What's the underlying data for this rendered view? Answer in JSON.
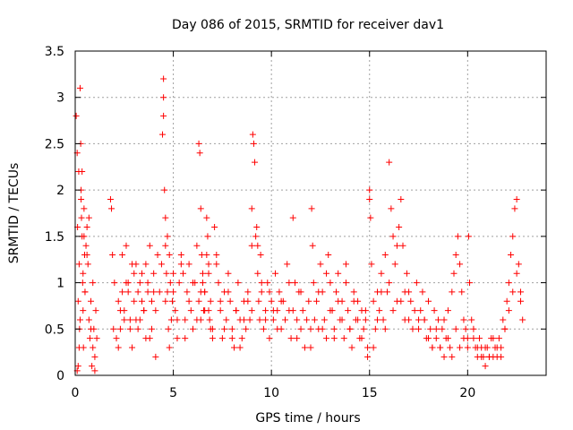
{
  "chart_data": {
    "type": "scatter",
    "title": "Day 086 of 2015, SRMTID for receiver dav1",
    "xlabel": "GPS time / hours",
    "ylabel": "SRMTID / TECUs",
    "xlim": [
      0,
      24
    ],
    "ylim": [
      0,
      3.5
    ],
    "xticks": [
      0,
      5,
      10,
      15,
      20
    ],
    "yticks": [
      0,
      0.5,
      1,
      1.5,
      2,
      2.5,
      3,
      3.5
    ],
    "xtick_labels": [
      "0",
      "5",
      "10",
      "15",
      "20"
    ],
    "ytick_labels": [
      "0",
      "0.5",
      "1",
      "1.5",
      "2",
      "2.5",
      "3",
      "3.5"
    ],
    "grid": true,
    "marker": "+",
    "color": "#ff0000",
    "series": [
      {
        "name": "SRMTID",
        "x": [
          0.05,
          0.1,
          0.12,
          0.15,
          0.18,
          0.2,
          0.22,
          0.25,
          0.28,
          0.3,
          0.32,
          0.35,
          0.38,
          0.4,
          0.42,
          0.45,
          0.48,
          0.5,
          0.55,
          0.6,
          0.65,
          0.7,
          0.75,
          0.8,
          0.85,
          0.9,
          0.95,
          1.0,
          1.05,
          1.1,
          0.3,
          0.35,
          0.4,
          0.2,
          0.25,
          0.15,
          0.1,
          0.45,
          0.5,
          0.6,
          0.7,
          0.8,
          0.9,
          1.0,
          1.8,
          1.85,
          1.9,
          1.95,
          2.0,
          2.1,
          2.2,
          2.3,
          2.4,
          2.5,
          2.6,
          2.7,
          2.8,
          2.9,
          3.0,
          3.1,
          3.2,
          3.3,
          3.4,
          3.5,
          3.6,
          3.7,
          3.8,
          3.9,
          4.0,
          4.1,
          4.2,
          4.3,
          2.2,
          2.4,
          2.6,
          2.8,
          3.0,
          3.2,
          3.4,
          3.6,
          3.8,
          4.0,
          2.3,
          2.5,
          2.7,
          2.9,
          3.1,
          3.3,
          3.5,
          3.7,
          3.9,
          4.1,
          4.4,
          4.45,
          4.5,
          4.5,
          4.5,
          4.55,
          4.6,
          4.6,
          4.65,
          4.7,
          4.75,
          4.8,
          4.85,
          4.9,
          4.95,
          5.0,
          5.1,
          5.2,
          5.3,
          5.4,
          5.5,
          5.6,
          5.7,
          5.8,
          5.9,
          6.0,
          6.1,
          6.2,
          6.3,
          6.4,
          6.5,
          6.6,
          6.7,
          6.8,
          6.9,
          7.0,
          4.6,
          4.7,
          4.8,
          5.0,
          5.2,
          5.4,
          5.6,
          5.8,
          6.0,
          6.2,
          6.4,
          6.6,
          6.8,
          6.3,
          6.35,
          6.4,
          6.45,
          6.5,
          6.55,
          6.6,
          6.7,
          6.75,
          6.8,
          6.85,
          6.9,
          7.0,
          7.1,
          7.2,
          7.3,
          7.4,
          7.5,
          7.6,
          7.7,
          7.8,
          7.9,
          8.0,
          8.1,
          8.2,
          8.3,
          8.4,
          8.5,
          8.6,
          8.7,
          8.8,
          8.9,
          9.0,
          7.2,
          7.4,
          7.6,
          7.8,
          8.0,
          8.2,
          8.4,
          8.6,
          8.8,
          9.0,
          9.0,
          9.05,
          9.1,
          9.15,
          9.2,
          9.25,
          9.3,
          9.35,
          9.4,
          9.45,
          9.5,
          9.6,
          9.7,
          9.8,
          9.9,
          10.0,
          10.1,
          10.2,
          10.3,
          10.4,
          10.5,
          10.6,
          10.7,
          10.8,
          10.9,
          11.0,
          11.1,
          11.2,
          11.3,
          11.4,
          11.5,
          11.6,
          11.7,
          11.8,
          11.9,
          12.0,
          9.3,
          9.5,
          9.7,
          9.9,
          10.1,
          10.3,
          10.5,
          10.7,
          10.9,
          11.1,
          11.3,
          11.5,
          12.0,
          12.05,
          12.1,
          12.15,
          12.2,
          12.3,
          12.4,
          12.5,
          12.6,
          12.7,
          12.8,
          12.9,
          13.0,
          13.1,
          13.2,
          13.3,
          13.4,
          13.5,
          13.6,
          13.7,
          13.8,
          13.9,
          14.0,
          14.1,
          14.2,
          14.3,
          14.4,
          14.5,
          14.6,
          14.7,
          14.8,
          14.9,
          12.4,
          12.6,
          12.8,
          13.0,
          13.2,
          13.4,
          13.6,
          13.8,
          14.0,
          14.2,
          14.4,
          14.6,
          14.8,
          14.9,
          15.0,
          15.0,
          15.05,
          15.1,
          15.2,
          15.3,
          15.4,
          15.5,
          15.6,
          15.7,
          15.8,
          15.9,
          16.0,
          16.1,
          16.2,
          16.3,
          16.4,
          16.5,
          16.6,
          16.7,
          16.8,
          16.9,
          17.0,
          17.1,
          17.2,
          17.3,
          17.4,
          17.5,
          15.2,
          15.4,
          15.6,
          15.8,
          16.0,
          16.2,
          16.4,
          16.6,
          16.8,
          17.0,
          17.5,
          17.6,
          17.7,
          17.8,
          17.9,
          18.0,
          18.1,
          18.2,
          18.3,
          18.4,
          18.5,
          18.6,
          18.7,
          18.8,
          18.9,
          19.0,
          19.1,
          19.2,
          19.3,
          19.4,
          19.5,
          19.6,
          19.7,
          19.8,
          19.9,
          20.0,
          17.8,
          18.0,
          18.2,
          18.4,
          18.6,
          18.8,
          19.0,
          19.2,
          19.4,
          19.6,
          19.8,
          20.0,
          20.05,
          20.1,
          20.2,
          20.3,
          20.4,
          20.5,
          20.6,
          20.7,
          20.8,
          20.9,
          21.0,
          21.1,
          21.2,
          21.3,
          21.4,
          21.5,
          21.6,
          21.7,
          21.8,
          21.9,
          22.0,
          22.1,
          22.2,
          22.3,
          22.4,
          22.5,
          22.6,
          22.7,
          22.8,
          20.3,
          20.5,
          20.7,
          20.9,
          21.1,
          21.3,
          21.5,
          21.7,
          21.9,
          22.1,
          22.3,
          22.5,
          22.7
        ],
        "y": [
          2.8,
          2.4,
          1.6,
          0.8,
          2.2,
          1.2,
          0.5,
          3.1,
          2.5,
          2.0,
          1.7,
          1.5,
          1.0,
          0.7,
          0.3,
          1.8,
          1.3,
          0.9,
          1.4,
          1.6,
          1.2,
          0.6,
          0.4,
          0.8,
          0.1,
          0.3,
          0.5,
          0.2,
          0.7,
          0.4,
          1.9,
          2.2,
          1.1,
          0.3,
          0.6,
          0.1,
          0.05,
          1.5,
          0.9,
          1.3,
          1.7,
          0.5,
          1.0,
          0.05,
          1.9,
          1.8,
          1.3,
          0.5,
          1.0,
          0.4,
          0.8,
          0.7,
          1.3,
          0.6,
          1.0,
          0.9,
          0.5,
          0.3,
          0.8,
          1.2,
          0.9,
          0.6,
          1.1,
          0.7,
          0.4,
          1.0,
          1.4,
          0.8,
          1.1,
          0.7,
          1.3,
          0.9,
          0.3,
          0.9,
          1.4,
          0.6,
          1.1,
          0.5,
          0.8,
          1.2,
          0.4,
          0.9,
          0.5,
          0.7,
          1.0,
          1.2,
          0.6,
          1.0,
          0.7,
          0.9,
          0.5,
          0.2,
          1.2,
          2.6,
          3.2,
          3.0,
          2.8,
          2.0,
          1.7,
          1.4,
          1.1,
          0.9,
          0.5,
          1.3,
          1.0,
          0.6,
          0.8,
          1.1,
          0.7,
          0.4,
          1.0,
          1.3,
          1.1,
          0.6,
          0.9,
          1.2,
          0.7,
          0.5,
          1.0,
          1.4,
          0.8,
          0.6,
          1.1,
          0.9,
          1.3,
          0.7,
          0.5,
          0.4,
          0.8,
          1.5,
          0.3,
          0.9,
          0.6,
          1.2,
          0.4,
          0.8,
          1.0,
          0.6,
          0.9,
          0.7,
          1.1,
          2.5,
          2.4,
          1.8,
          1.3,
          1.0,
          0.7,
          0.9,
          1.7,
          1.5,
          1.2,
          0.6,
          0.8,
          0.5,
          1.6,
          1.3,
          1.0,
          0.7,
          0.4,
          0.9,
          0.6,
          1.1,
          0.8,
          0.5,
          0.3,
          0.7,
          1.0,
          0.6,
          0.4,
          0.8,
          0.5,
          0.9,
          0.6,
          0.7,
          1.2,
          0.8,
          0.5,
          0.9,
          0.4,
          0.7,
          0.3,
          0.6,
          0.8,
          1.4,
          1.8,
          2.6,
          2.5,
          2.3,
          1.5,
          1.6,
          1.1,
          0.8,
          0.6,
          1.3,
          0.9,
          0.5,
          0.7,
          1.0,
          0.4,
          0.8,
          0.6,
          1.1,
          0.7,
          0.9,
          0.5,
          0.8,
          0.6,
          1.2,
          0.7,
          0.4,
          1.7,
          1.0,
          0.6,
          0.9,
          0.5,
          0.7,
          0.3,
          0.6,
          0.8,
          0.5,
          1.4,
          1.0,
          0.6,
          0.9,
          0.7,
          0.5,
          0.8,
          0.6,
          1.0,
          0.7,
          0.4,
          0.9,
          0.3,
          1.8,
          1.4,
          1.0,
          0.6,
          0.8,
          0.5,
          1.2,
          0.9,
          0.6,
          0.4,
          1.3,
          1.0,
          0.7,
          0.5,
          0.9,
          1.1,
          0.6,
          0.8,
          0.4,
          1.2,
          0.7,
          0.5,
          0.3,
          0.9,
          0.6,
          0.8,
          0.4,
          0.7,
          0.5,
          0.6,
          0.3,
          0.9,
          0.5,
          1.1,
          0.7,
          0.4,
          0.8,
          0.6,
          1.0,
          0.5,
          0.8,
          0.6,
          0.4,
          0.7,
          0.2,
          2.0,
          1.9,
          1.7,
          1.2,
          0.8,
          0.5,
          0.9,
          0.7,
          1.1,
          0.6,
          1.3,
          0.9,
          2.3,
          1.8,
          1.5,
          1.2,
          0.8,
          1.6,
          1.9,
          1.4,
          0.9,
          1.1,
          0.6,
          0.8,
          0.5,
          0.7,
          1.0,
          0.6,
          0.3,
          0.6,
          0.9,
          0.5,
          1.0,
          0.7,
          1.4,
          0.8,
          0.6,
          0.9,
          0.5,
          0.7,
          0.9,
          0.6,
          0.4,
          0.8,
          0.5,
          0.3,
          0.7,
          0.4,
          0.6,
          0.3,
          0.5,
          0.2,
          0.4,
          0.7,
          0.3,
          0.9,
          1.1,
          1.3,
          1.5,
          1.2,
          0.9,
          0.6,
          0.5,
          0.4,
          0.6,
          0.4,
          0.3,
          0.5,
          0.3,
          0.6,
          0.4,
          0.2,
          0.5,
          0.3,
          0.4,
          0.3,
          1.5,
          1.0,
          0.6,
          0.4,
          0.3,
          0.2,
          0.4,
          0.3,
          0.2,
          0.1,
          0.3,
          0.2,
          0.4,
          0.2,
          0.3,
          0.2,
          0.4,
          0.3,
          0.6,
          0.5,
          0.8,
          1.0,
          1.3,
          1.5,
          1.8,
          1.9,
          1.2,
          0.9,
          0.6,
          0.5,
          0.3,
          0.2,
          0.3,
          0.2,
          0.4,
          0.3,
          0.2,
          0.5,
          0.7,
          0.9,
          1.1,
          0.8
        ]
      }
    ]
  }
}
